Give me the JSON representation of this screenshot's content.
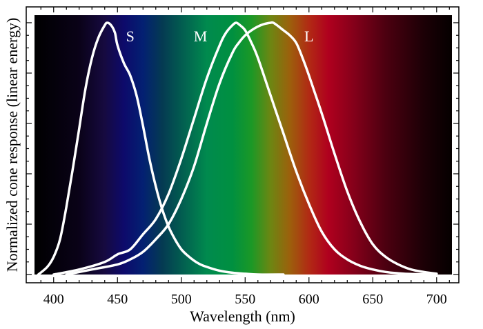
{
  "chart_data": {
    "type": "line",
    "title": "",
    "xlabel": "Wavelength (nm)",
    "ylabel": "Normalized cone response (linear energy)",
    "xlim": [
      385,
      712
    ],
    "ylim": [
      0,
      1.03
    ],
    "xticks": [
      400,
      450,
      500,
      550,
      600,
      650,
      700
    ],
    "grid": false,
    "legend": "none",
    "background": "visible spectrum gradient",
    "spectrum_colors": [
      {
        "wl": 385,
        "color": "#000000"
      },
      {
        "wl": 420,
        "color": "#0a0218"
      },
      {
        "wl": 440,
        "color": "#160a40"
      },
      {
        "wl": 455,
        "color": "#0d0a6b"
      },
      {
        "wl": 470,
        "color": "#032072"
      },
      {
        "wl": 485,
        "color": "#043a52"
      },
      {
        "wl": 500,
        "color": "#025c50"
      },
      {
        "wl": 520,
        "color": "#008a4e"
      },
      {
        "wl": 540,
        "color": "#009040"
      },
      {
        "wl": 555,
        "color": "#1b9826"
      },
      {
        "wl": 570,
        "color": "#6d8612"
      },
      {
        "wl": 585,
        "color": "#9c600c"
      },
      {
        "wl": 600,
        "color": "#b12a14"
      },
      {
        "wl": 615,
        "color": "#b0001e"
      },
      {
        "wl": 635,
        "color": "#85001a"
      },
      {
        "wl": 660,
        "color": "#4c0010"
      },
      {
        "wl": 690,
        "color": "#1c0006"
      },
      {
        "wl": 712,
        "color": "#050000"
      }
    ],
    "series": [
      {
        "name": "S",
        "peak_label_x": 460,
        "x": [
          388,
          395,
          400,
          405,
          410,
          415,
          420,
          425,
          430,
          435,
          440,
          442,
          445,
          448,
          450,
          455,
          460,
          465,
          470,
          475,
          480,
          485,
          490,
          495,
          500,
          505,
          510,
          515,
          520,
          530,
          540,
          550,
          560,
          580
        ],
        "y": [
          0.0,
          0.03,
          0.07,
          0.14,
          0.27,
          0.42,
          0.58,
          0.74,
          0.86,
          0.94,
          0.99,
          1.0,
          0.99,
          0.96,
          0.91,
          0.84,
          0.79,
          0.71,
          0.59,
          0.46,
          0.35,
          0.26,
          0.19,
          0.14,
          0.1,
          0.075,
          0.055,
          0.04,
          0.03,
          0.015,
          0.007,
          0.003,
          0.0,
          0.0
        ]
      },
      {
        "name": "M",
        "peak_label_x": 515,
        "x": [
          400,
          420,
          440,
          450,
          460,
          470,
          480,
          490,
          500,
          510,
          520,
          530,
          535,
          540,
          543,
          546,
          550,
          555,
          560,
          570,
          580,
          590,
          600,
          610,
          620,
          630,
          640,
          650,
          660,
          670,
          680,
          700
        ],
        "y": [
          0.0,
          0.02,
          0.05,
          0.08,
          0.1,
          0.16,
          0.22,
          0.32,
          0.46,
          0.62,
          0.78,
          0.91,
          0.96,
          0.99,
          1.0,
          0.99,
          0.97,
          0.92,
          0.86,
          0.71,
          0.56,
          0.41,
          0.28,
          0.17,
          0.1,
          0.06,
          0.035,
          0.02,
          0.01,
          0.005,
          0.002,
          0.0
        ]
      },
      {
        "name": "L",
        "peak_label_x": 600,
        "x": [
          410,
          430,
          450,
          460,
          470,
          480,
          490,
          500,
          510,
          520,
          530,
          540,
          545,
          550,
          555,
          560,
          565,
          570,
          572,
          575,
          580,
          585,
          590,
          595,
          600,
          610,
          620,
          630,
          640,
          650,
          660,
          670,
          680,
          690,
          700
        ],
        "y": [
          0.0,
          0.02,
          0.04,
          0.06,
          0.09,
          0.14,
          0.2,
          0.3,
          0.43,
          0.6,
          0.76,
          0.88,
          0.92,
          0.95,
          0.97,
          0.985,
          0.995,
          1.0,
          1.0,
          0.99,
          0.97,
          0.95,
          0.92,
          0.86,
          0.79,
          0.64,
          0.48,
          0.33,
          0.21,
          0.12,
          0.07,
          0.04,
          0.02,
          0.01,
          0.003
        ]
      }
    ]
  }
}
